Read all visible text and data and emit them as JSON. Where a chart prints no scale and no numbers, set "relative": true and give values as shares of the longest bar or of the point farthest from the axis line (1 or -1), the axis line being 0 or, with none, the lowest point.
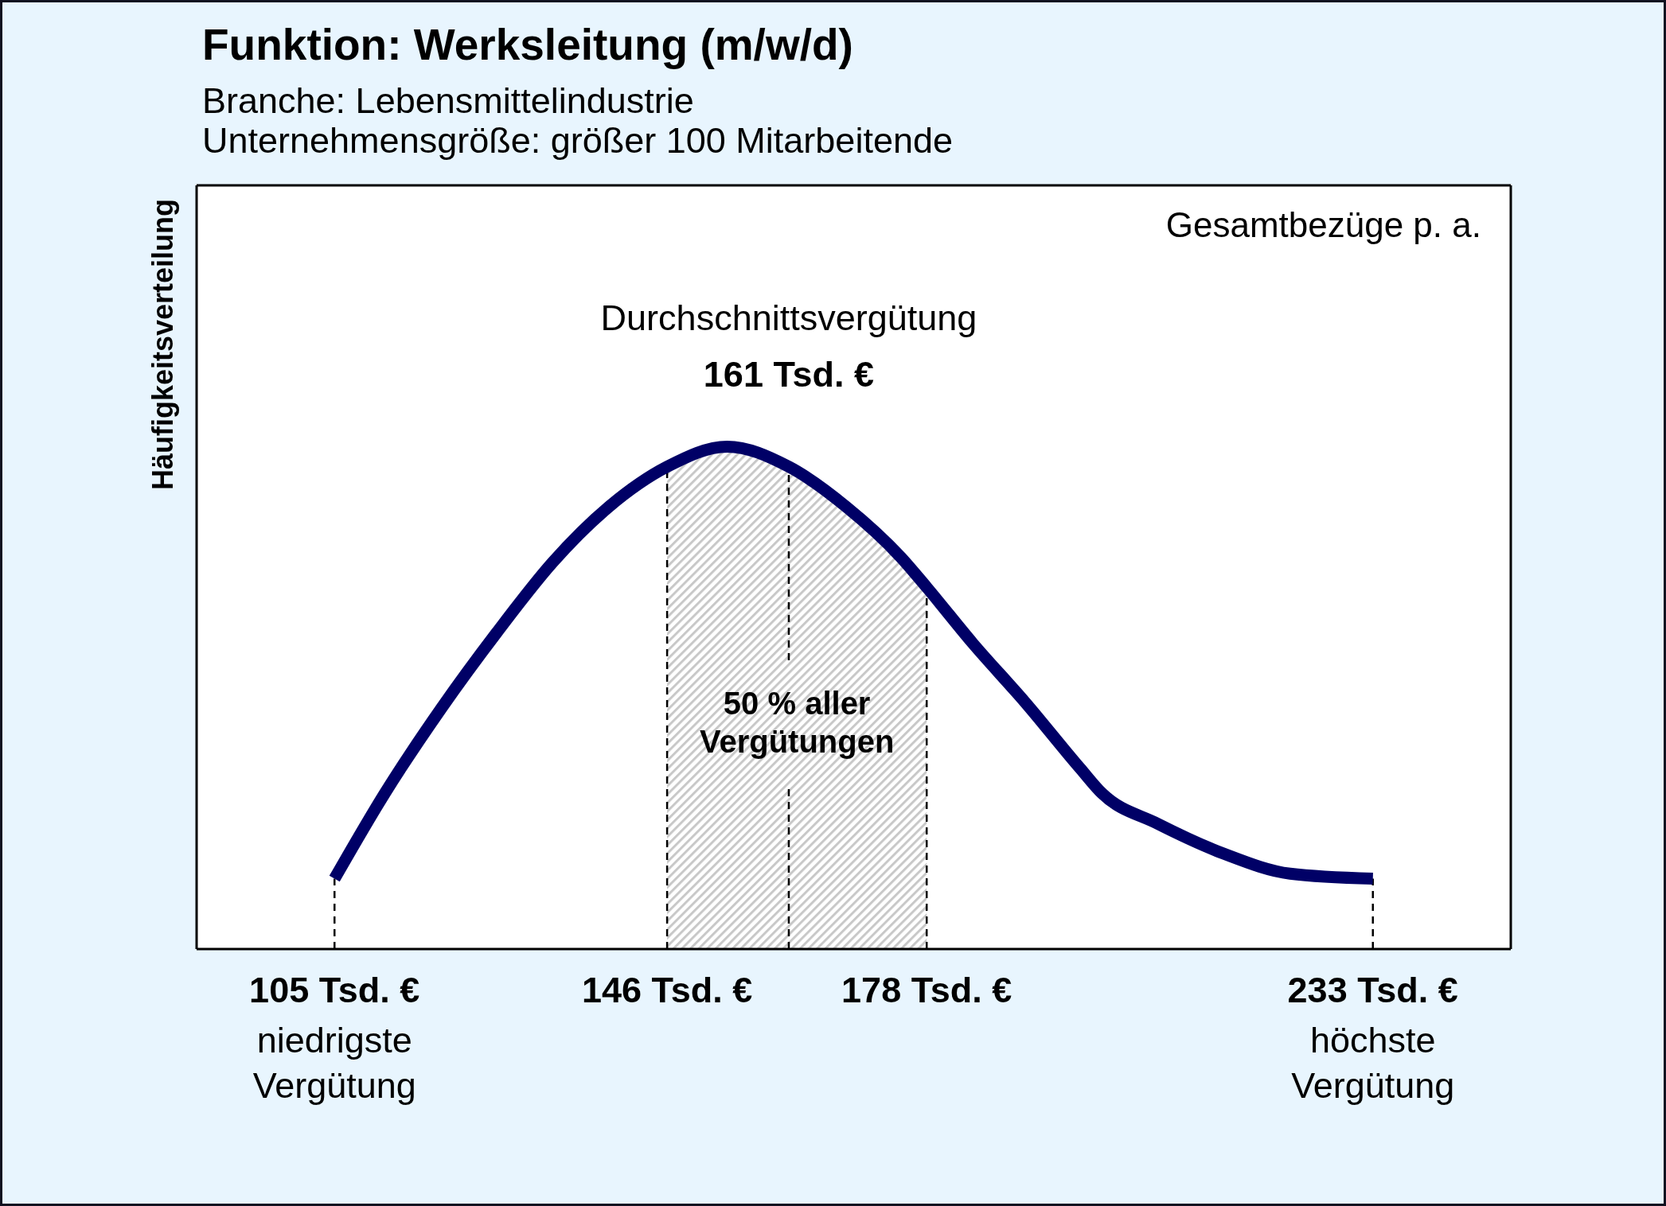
{
  "chart_data": {
    "type": "line",
    "title": "Funktion: Werksleitung (m/w/d)",
    "subtitle": "Branche: Lebensmittelindustrie\nUnternehmensgröße: größer 100 Mitarbeitende",
    "ylabel": "Häufigkeitsverteilung",
    "x": [
      105,
      111.2,
      118.2,
      125,
      131.9,
      138.8,
      146,
      153.4,
      161,
      168.1,
      174.8,
      178,
      183.6,
      190.2,
      196.9,
      199.6,
      206.4,
      214.6,
      222.8,
      233
    ],
    "values": [
      0.14,
      0.31,
      0.48,
      0.63,
      0.77,
      0.88,
      0.96,
      1.0,
      0.96,
      0.88,
      0.78,
      0.72,
      0.61,
      0.49,
      0.36,
      0.31,
      0.25,
      0.19,
      0.15,
      0.14
    ],
    "color": "#000066",
    "relative": true,
    "marker": "none",
    "xlim": [
      88,
      250
    ],
    "xticks": [
      {
        "value": 105,
        "label": "105 Tsd. €\nniedrigste\nVergütung"
      },
      {
        "value": 146,
        "label": "146 Tsd. €"
      },
      {
        "value": 178,
        "label": "178 Tsd. €"
      },
      {
        "value": 233,
        "label": "233 Tsd. €\nhöchste\nVergütung"
      }
    ],
    "ref_lines": [
      {
        "axis": "x",
        "value": 105,
        "line_style": "dashed",
        "color": "#000000"
      },
      {
        "axis": "x",
        "value": 146,
        "line_style": "dashed",
        "color": "#000000"
      },
      {
        "axis": "x",
        "value": 161,
        "label": "Durchschnittsvergütung\n161 Tsd. €",
        "line_style": "dashed",
        "color": "#000000"
      },
      {
        "axis": "x",
        "value": 178,
        "line_style": "dashed",
        "color": "#000000"
      },
      {
        "axis": "x",
        "value": 233,
        "line_style": "dashed",
        "color": "#000000"
      }
    ],
    "bands": [
      {
        "axis": "x",
        "from": 146,
        "to": 178,
        "label": "50 % aller Vergütungen",
        "color": "#c8c8c8"
      }
    ],
    "annotations": [
      "Gesamtbezüge p. a."
    ]
  }
}
